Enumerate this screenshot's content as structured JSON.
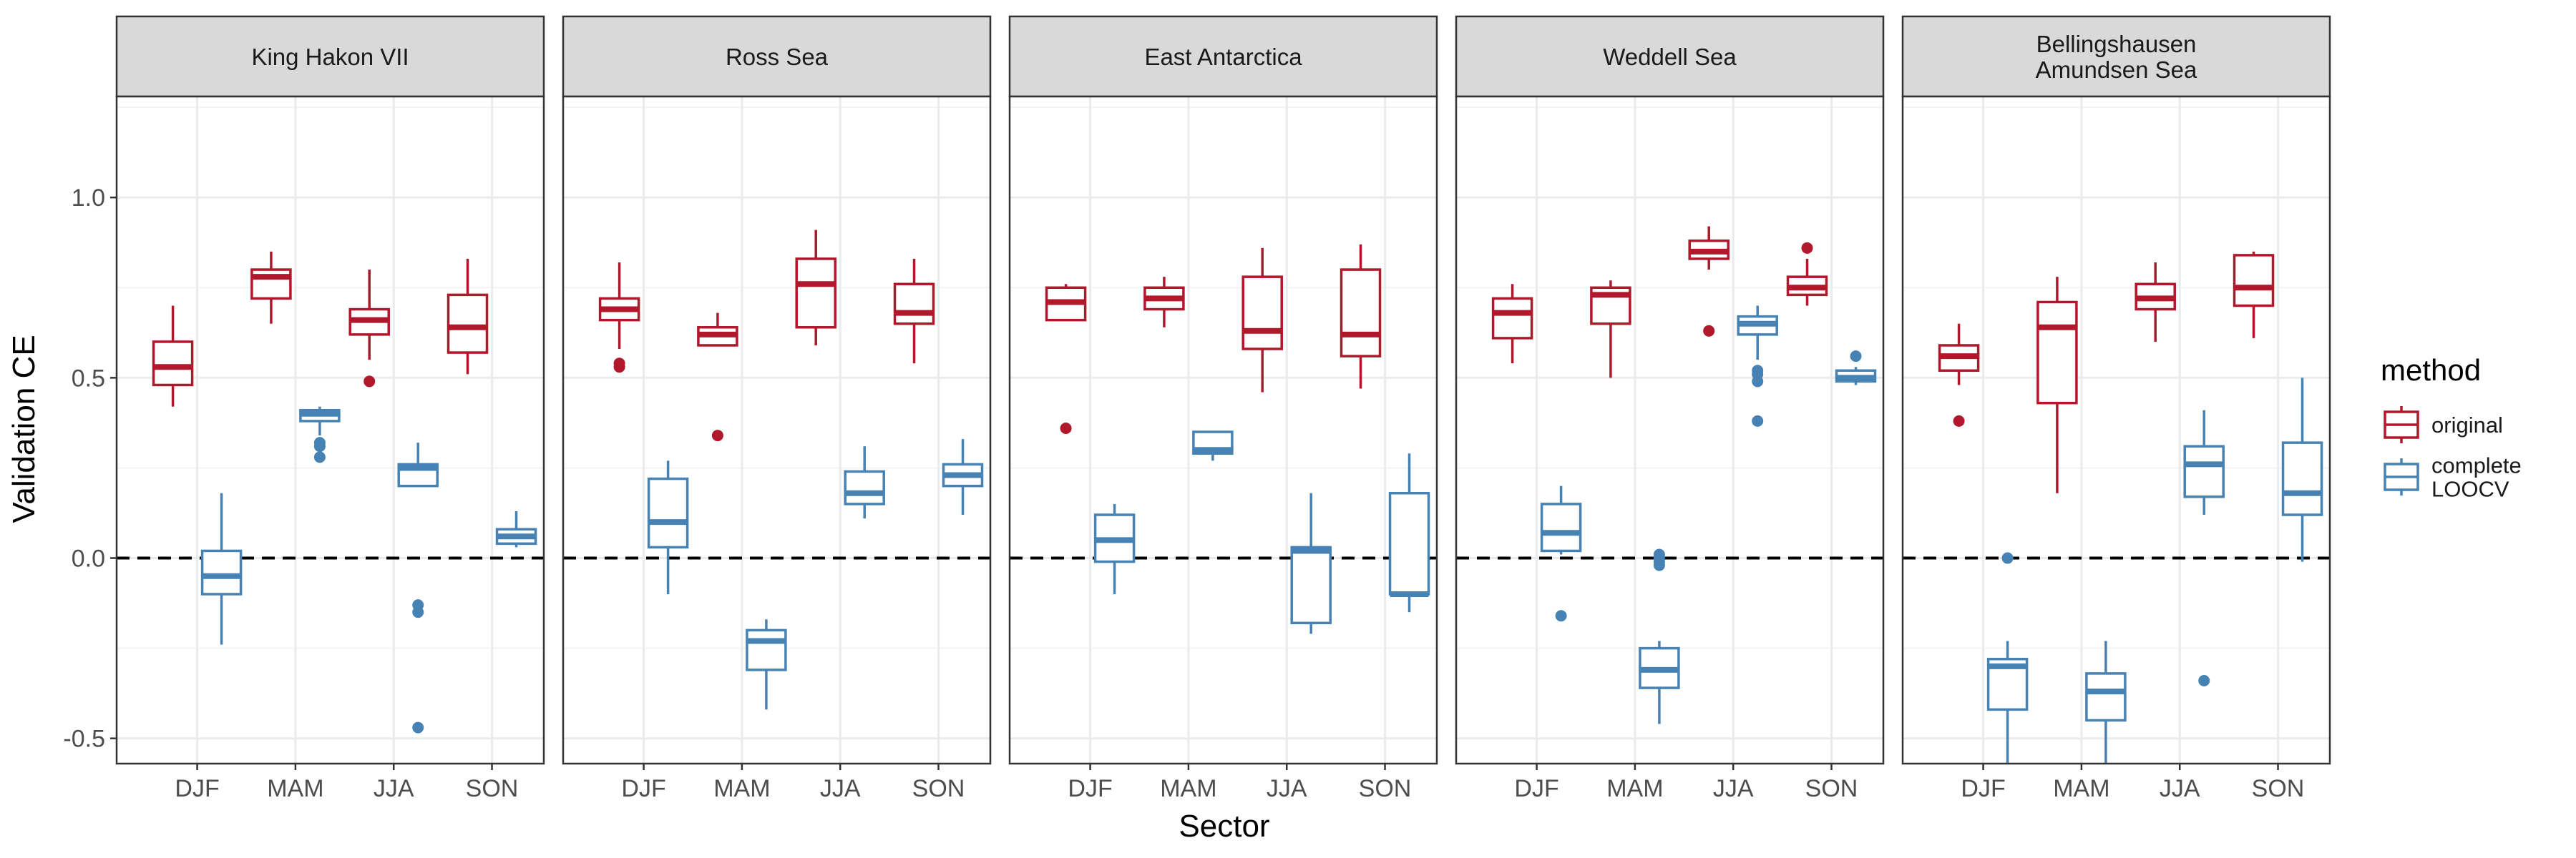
{
  "chart_data": {
    "type": "box",
    "ylabel": "Validation CE",
    "xlabel": "Sector",
    "ylim": [
      -0.57,
      1.28
    ],
    "yticks": [
      -0.5,
      0.0,
      0.5,
      1.0
    ],
    "ytick_labels": [
      "-0.5",
      "0.0",
      "0.5",
      "1.0"
    ],
    "reference_line": {
      "y": 0,
      "style": "dashed",
      "color": "#000000"
    },
    "categories": [
      "DJF",
      "MAM",
      "JJA",
      "SON"
    ],
    "legend": {
      "title": "method",
      "position": "right",
      "entries": [
        {
          "label_lines": [
            "original"
          ],
          "color": "#b2182b"
        },
        {
          "label_lines": [
            "complete",
            "LOOCV"
          ],
          "color": "#4682b4"
        }
      ]
    },
    "panels": [
      {
        "title_lines": [
          "King Hakon VII"
        ],
        "original": [
          {
            "cat": "DJF",
            "low": 0.42,
            "q1": 0.48,
            "median": 0.53,
            "q3": 0.6,
            "high": 0.7,
            "outliers": []
          },
          {
            "cat": "MAM",
            "low": 0.65,
            "q1": 0.72,
            "median": 0.78,
            "q3": 0.8,
            "high": 0.85,
            "outliers": []
          },
          {
            "cat": "JJA",
            "low": 0.55,
            "q1": 0.62,
            "median": 0.66,
            "q3": 0.69,
            "high": 0.8,
            "outliers": [
              0.49
            ]
          },
          {
            "cat": "SON",
            "low": 0.51,
            "q1": 0.57,
            "median": 0.64,
            "q3": 0.73,
            "high": 0.83,
            "outliers": []
          }
        ],
        "loocv": [
          {
            "cat": "DJF",
            "low": -0.24,
            "q1": -0.1,
            "median": -0.05,
            "q3": 0.02,
            "high": 0.18,
            "outliers": []
          },
          {
            "cat": "MAM",
            "low": 0.34,
            "q1": 0.38,
            "median": 0.4,
            "q3": 0.41,
            "high": 0.42,
            "outliers": [
              0.32,
              0.31,
              0.28
            ]
          },
          {
            "cat": "JJA",
            "low": 0.2,
            "q1": 0.2,
            "median": 0.25,
            "q3": 0.26,
            "high": 0.32,
            "outliers": [
              -0.13,
              -0.15,
              -0.47
            ]
          },
          {
            "cat": "SON",
            "low": 0.03,
            "q1": 0.04,
            "median": 0.06,
            "q3": 0.08,
            "high": 0.13,
            "outliers": []
          }
        ]
      },
      {
        "title_lines": [
          "Ross Sea"
        ],
        "original": [
          {
            "cat": "DJF",
            "low": 0.58,
            "q1": 0.66,
            "median": 0.69,
            "q3": 0.72,
            "high": 0.82,
            "outliers": [
              0.54,
              0.53
            ]
          },
          {
            "cat": "MAM",
            "low": 0.59,
            "q1": 0.59,
            "median": 0.62,
            "q3": 0.64,
            "high": 0.68,
            "outliers": [
              0.34
            ]
          },
          {
            "cat": "JJA",
            "low": 0.59,
            "q1": 0.64,
            "median": 0.76,
            "q3": 0.83,
            "high": 0.91,
            "outliers": []
          },
          {
            "cat": "SON",
            "low": 0.54,
            "q1": 0.65,
            "median": 0.68,
            "q3": 0.76,
            "high": 0.83,
            "outliers": []
          }
        ],
        "loocv": [
          {
            "cat": "DJF",
            "low": -0.1,
            "q1": 0.03,
            "median": 0.1,
            "q3": 0.22,
            "high": 0.27,
            "outliers": []
          },
          {
            "cat": "MAM",
            "low": -0.42,
            "q1": -0.31,
            "median": -0.23,
            "q3": -0.2,
            "high": -0.17,
            "outliers": []
          },
          {
            "cat": "JJA",
            "low": 0.11,
            "q1": 0.15,
            "median": 0.18,
            "q3": 0.24,
            "high": 0.31,
            "outliers": []
          },
          {
            "cat": "SON",
            "low": 0.12,
            "q1": 0.2,
            "median": 0.23,
            "q3": 0.26,
            "high": 0.33,
            "outliers": []
          }
        ]
      },
      {
        "title_lines": [
          "East Antarctica"
        ],
        "original": [
          {
            "cat": "DJF",
            "low": 0.66,
            "q1": 0.66,
            "median": 0.71,
            "q3": 0.75,
            "high": 0.76,
            "outliers": [
              0.36
            ]
          },
          {
            "cat": "MAM",
            "low": 0.64,
            "q1": 0.69,
            "median": 0.72,
            "q3": 0.75,
            "high": 0.78,
            "outliers": []
          },
          {
            "cat": "JJA",
            "low": 0.46,
            "q1": 0.58,
            "median": 0.63,
            "q3": 0.78,
            "high": 0.86,
            "outliers": []
          },
          {
            "cat": "SON",
            "low": 0.47,
            "q1": 0.56,
            "median": 0.62,
            "q3": 0.8,
            "high": 0.87,
            "outliers": []
          }
        ],
        "loocv": [
          {
            "cat": "DJF",
            "low": -0.1,
            "q1": -0.01,
            "median": 0.05,
            "q3": 0.12,
            "high": 0.15,
            "outliers": []
          },
          {
            "cat": "MAM",
            "low": 0.27,
            "q1": 0.29,
            "median": 0.3,
            "q3": 0.35,
            "high": 0.35,
            "outliers": []
          },
          {
            "cat": "JJA",
            "low": -0.21,
            "q1": -0.18,
            "median": 0.02,
            "q3": 0.03,
            "high": 0.18,
            "outliers": []
          },
          {
            "cat": "SON",
            "low": -0.15,
            "q1": -0.1,
            "median": -0.1,
            "q3": 0.18,
            "high": 0.29,
            "outliers": []
          }
        ]
      },
      {
        "title_lines": [
          "Weddell Sea"
        ],
        "original": [
          {
            "cat": "DJF",
            "low": 0.54,
            "q1": 0.61,
            "median": 0.68,
            "q3": 0.72,
            "high": 0.76,
            "outliers": []
          },
          {
            "cat": "MAM",
            "low": 0.5,
            "q1": 0.65,
            "median": 0.73,
            "q3": 0.75,
            "high": 0.77,
            "outliers": []
          },
          {
            "cat": "JJA",
            "low": 0.8,
            "q1": 0.83,
            "median": 0.85,
            "q3": 0.88,
            "high": 0.92,
            "outliers": [
              0.63
            ]
          },
          {
            "cat": "SON",
            "low": 0.7,
            "q1": 0.73,
            "median": 0.75,
            "q3": 0.78,
            "high": 0.83,
            "outliers": [
              0.86
            ]
          }
        ],
        "loocv": [
          {
            "cat": "DJF",
            "low": 0.01,
            "q1": 0.02,
            "median": 0.07,
            "q3": 0.15,
            "high": 0.2,
            "outliers": [
              -0.16
            ]
          },
          {
            "cat": "MAM",
            "low": -0.46,
            "q1": -0.36,
            "median": -0.31,
            "q3": -0.25,
            "high": -0.23,
            "outliers": [
              0.01,
              0.0,
              -0.01,
              -0.02
            ]
          },
          {
            "cat": "JJA",
            "low": 0.55,
            "q1": 0.62,
            "median": 0.65,
            "q3": 0.67,
            "high": 0.7,
            "outliers": [
              0.52,
              0.51,
              0.49,
              0.38
            ]
          },
          {
            "cat": "SON",
            "low": 0.48,
            "q1": 0.49,
            "median": 0.5,
            "q3": 0.52,
            "high": 0.53,
            "outliers": [
              0.56
            ]
          }
        ]
      },
      {
        "title_lines": [
          "Bellingshausen",
          "Amundsen Sea"
        ],
        "original": [
          {
            "cat": "DJF",
            "low": 0.48,
            "q1": 0.52,
            "median": 0.56,
            "q3": 0.59,
            "high": 0.65,
            "outliers": [
              0.38
            ]
          },
          {
            "cat": "MAM",
            "low": 0.18,
            "q1": 0.43,
            "median": 0.64,
            "q3": 0.71,
            "high": 0.78,
            "outliers": []
          },
          {
            "cat": "JJA",
            "low": 0.6,
            "q1": 0.69,
            "median": 0.72,
            "q3": 0.76,
            "high": 0.82,
            "outliers": []
          },
          {
            "cat": "SON",
            "low": 0.61,
            "q1": 0.7,
            "median": 0.75,
            "q3": 0.84,
            "high": 0.85,
            "outliers": []
          }
        ],
        "loocv": [
          {
            "cat": "DJF",
            "low": -0.57,
            "q1": -0.42,
            "median": -0.3,
            "q3": -0.28,
            "high": -0.23,
            "outliers": [
              0.0
            ]
          },
          {
            "cat": "MAM",
            "low": -0.57,
            "q1": -0.45,
            "median": -0.37,
            "q3": -0.32,
            "high": -0.23,
            "outliers": []
          },
          {
            "cat": "JJA",
            "low": 0.12,
            "q1": 0.17,
            "median": 0.26,
            "q3": 0.31,
            "high": 0.41,
            "outliers": [
              -0.34
            ]
          },
          {
            "cat": "SON",
            "low": -0.01,
            "q1": 0.12,
            "median": 0.18,
            "q3": 0.32,
            "high": 0.5,
            "outliers": []
          }
        ]
      }
    ]
  },
  "colors": {
    "original": "#b2182b",
    "loocv": "#4682b4",
    "strip_bg": "#d9d9d9",
    "grid_major": "#ebebeb",
    "grid_minor": "#f3f3f3",
    "panel_border": "#333333",
    "axis_text": "#4d4d4d"
  }
}
